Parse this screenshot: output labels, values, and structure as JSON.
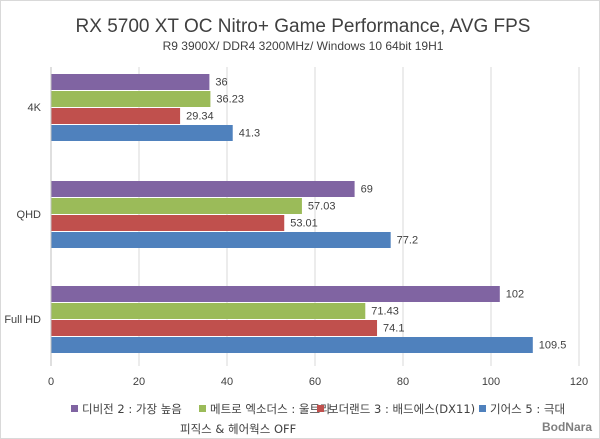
{
  "chart_data": {
    "type": "bar",
    "orientation": "horizontal",
    "title": "RX 5700 XT OC Nitro+ Game Performance, AVG FPS",
    "subtitle": "R9 3900X/ DDR4 3200MHz/ Windows 10 64bit 19H1",
    "categories": [
      "4K",
      "QHD",
      "Full HD"
    ],
    "series": [
      {
        "name": "디비전 2 : 가장 높음",
        "color": "#8064a2",
        "values": [
          36,
          69,
          102
        ]
      },
      {
        "name": "메트로 엑소더스 : 울트라",
        "color": "#9bbb59",
        "values": [
          36.23,
          57.03,
          71.43
        ]
      },
      {
        "name": "보더랜드 3 : 배드에스(DX11)",
        "color": "#c0504d",
        "values": [
          29.34,
          53.01,
          74.1
        ]
      },
      {
        "name": "기어스 5 : 극대 피직스 & 헤어웍스 OFF",
        "color": "#4f81bd",
        "values": [
          41.3,
          77.2,
          109.5
        ]
      }
    ],
    "data_labels": [
      [
        "36",
        "69",
        "102"
      ],
      [
        "36.23",
        "57.03",
        "71.43"
      ],
      [
        "29.34",
        "53.01",
        "74.1"
      ],
      [
        "41.3",
        "77.2",
        "109.5"
      ]
    ],
    "xlim": [
      0,
      120
    ],
    "xticks": [
      0,
      20,
      40,
      60,
      80,
      100,
      120
    ],
    "xlabel": "",
    "ylabel": "",
    "grid": true,
    "legend_position": "bottom"
  },
  "legend": {
    "line1": [
      "디비전 2 : 가장 높음",
      "메트로 엑소더스 : 울트라",
      "보더랜드 3 : 배드에스(DX11)",
      "기어스 5 : 극대"
    ],
    "line2": "피직스 & 헤어웍스 OFF"
  },
  "watermark": "BodNara",
  "colors": {
    "gridline": "#d9d9d9",
    "axis": "#bfbfbf",
    "text": "#404040"
  }
}
